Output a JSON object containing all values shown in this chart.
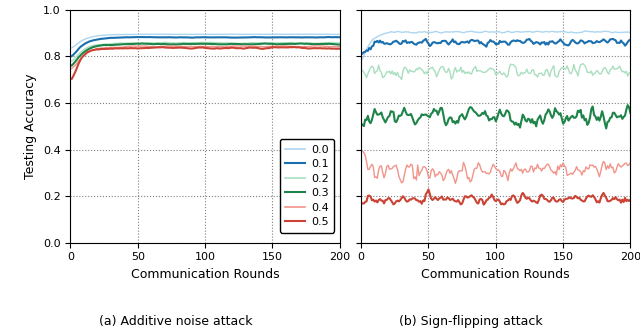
{
  "title_a": "(a) Additive noise attack",
  "title_b": "(b) Sign-flipping attack",
  "xlabel": "Communication Rounds",
  "ylabel": "Testing Accuracy",
  "xlim": [
    0,
    200
  ],
  "ylim": [
    0.0,
    1.0
  ],
  "yticks": [
    0.0,
    0.2,
    0.4,
    0.6,
    0.8,
    1.0
  ],
  "xticks": [
    0,
    50,
    100,
    150,
    200
  ],
  "n_rounds": 200,
  "legend_labels": [
    "0.0",
    "0.1",
    "0.2",
    "0.3",
    "0.4",
    "0.5"
  ],
  "colors": [
    "#aed6f1",
    "#1a6faf",
    "#a9dfbf",
    "#1e8449",
    "#f1948a",
    "#cb4335"
  ],
  "linewidths": [
    1.0,
    1.5,
    1.0,
    1.5,
    1.0,
    1.5
  ],
  "seed": 42,
  "panel_a_finals": [
    0.895,
    0.882,
    0.858,
    0.853,
    0.843,
    0.836
  ],
  "panel_a_starts": [
    0.82,
    0.78,
    0.76,
    0.74,
    0.72,
    0.64
  ],
  "panel_a_noises": [
    0.001,
    0.002,
    0.003,
    0.003,
    0.004,
    0.005
  ],
  "panel_a_taus": [
    8,
    8,
    8,
    8,
    8,
    5
  ],
  "panel_b_finals": [
    0.905,
    0.862,
    0.735,
    0.545,
    0.31,
    0.185
  ],
  "panel_b_starts": [
    0.76,
    0.79,
    0.7,
    0.52,
    0.33,
    0.2
  ],
  "panel_b_noises": [
    0.003,
    0.012,
    0.025,
    0.03,
    0.04,
    0.018
  ],
  "panel_b_taus": [
    6,
    5,
    4,
    4,
    4,
    4
  ]
}
